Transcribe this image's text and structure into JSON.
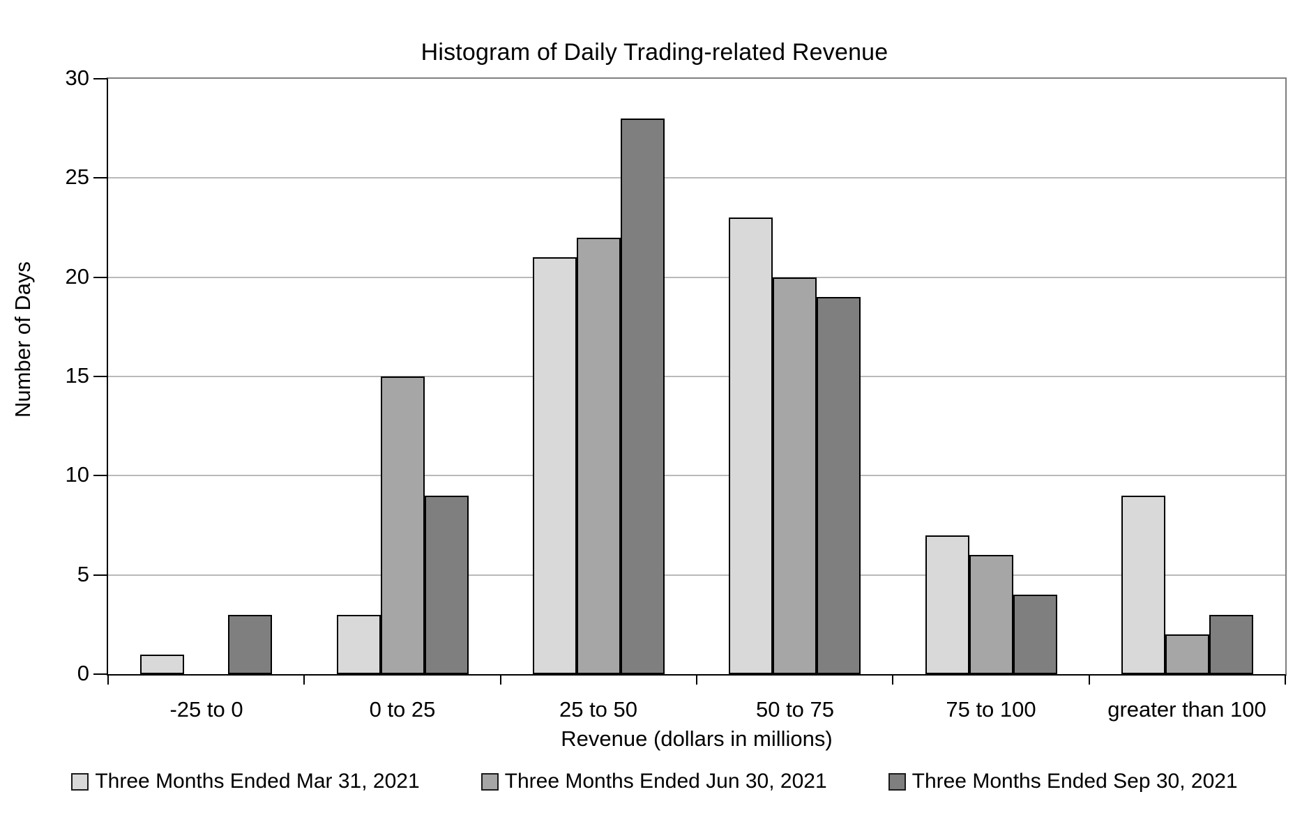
{
  "chart_data": {
    "type": "bar",
    "title": "Histogram of Daily Trading-related Revenue",
    "xlabel": "Revenue (dollars in millions)",
    "ylabel": "Number of Days",
    "categories": [
      "-25 to 0",
      "0 to 25",
      "25 to 50",
      "50 to 75",
      "75 to 100",
      "greater than 100"
    ],
    "series": [
      {
        "name": "Three Months Ended Mar 31, 2021",
        "color": "#d9d9d9",
        "values": [
          1,
          3,
          21,
          23,
          7,
          9
        ]
      },
      {
        "name": "Three Months Ended Jun 30, 2021",
        "color": "#a6a6a6",
        "values": [
          0,
          15,
          22,
          20,
          6,
          2
        ]
      },
      {
        "name": "Three Months Ended Sep 30, 2021",
        "color": "#7f7f7f",
        "values": [
          3,
          9,
          28,
          19,
          4,
          3
        ]
      }
    ],
    "ylim": [
      0,
      30
    ],
    "yticks": [
      0,
      5,
      10,
      15,
      20,
      25,
      30
    ],
    "grid": true,
    "legend_position": "bottom"
  },
  "colors": {
    "background": "#ffffff",
    "axis_line": "#000000",
    "plot_border_gray": "#7f7f7f",
    "gridline": "#b9b9b9",
    "bar_outline": "#000000",
    "text": "#000000"
  }
}
